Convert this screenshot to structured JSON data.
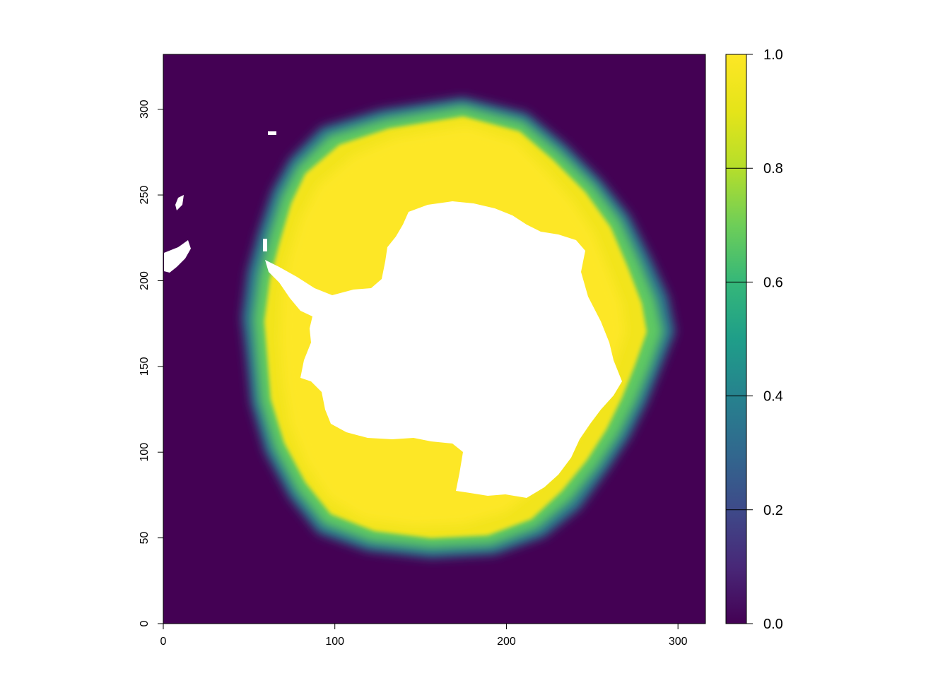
{
  "chart_data": {
    "type": "heatmap",
    "title": "",
    "xlabel": "",
    "ylabel": "",
    "xlim": [
      0,
      316
    ],
    "ylim": [
      0,
      332
    ],
    "x_ticks": [
      "0",
      "100",
      "200",
      "300"
    ],
    "y_ticks": [
      "0",
      "50",
      "100",
      "150",
      "200",
      "250",
      "300"
    ],
    "colorbar": {
      "min": 0.0,
      "max": 1.0,
      "ticks": [
        "0.0",
        "0.2",
        "0.4",
        "0.6",
        "0.8",
        "1.0"
      ],
      "palette": "viridis"
    },
    "colors": {
      "ocean": "#440154",
      "pack_ice": "#FDE725",
      "edge": "#21918C",
      "land_na": "#FFFFFF"
    }
  }
}
